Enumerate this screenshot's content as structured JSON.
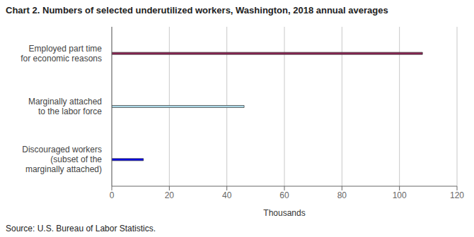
{
  "chart_data": {
    "type": "bar",
    "title": "Chart 2. Numbers of selected underutilized workers, Washington, 2018 annual averages",
    "orientation": "horizontal",
    "categories": [
      "Discouraged workers\n(subset of the\nmarginally attached)",
      "Marginally attached\nto the labor force",
      "Employed part time\nfor economic reasons"
    ],
    "values": [
      11,
      46,
      108
    ],
    "colors": [
      "#0000ee",
      "#add8e6",
      "#8b2252"
    ],
    "xlim": [
      0,
      120
    ],
    "xticks": [
      0,
      20,
      40,
      60,
      80,
      100,
      120
    ],
    "xlabel": "Thousands",
    "source": "Source: U.S. Bureau of Labor Statistics.",
    "grid": true
  }
}
